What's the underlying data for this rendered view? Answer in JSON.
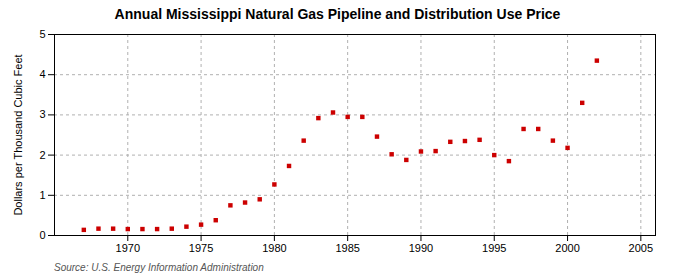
{
  "chart_data": {
    "type": "scatter",
    "title": "Annual Mississippi Natural Gas Pipeline and Distribution Use Price",
    "ylabel": "Dollars per Thousand Cubic Feet",
    "caption": "Source: U.S. Energy Information Administration",
    "x": [
      1967,
      1968,
      1969,
      1970,
      1971,
      1972,
      1973,
      1974,
      1975,
      1976,
      1977,
      1978,
      1979,
      1980,
      1981,
      1982,
      1983,
      1984,
      1985,
      1986,
      1987,
      1988,
      1989,
      1990,
      1991,
      1992,
      1993,
      1994,
      1995,
      1996,
      1997,
      1998,
      1999,
      2000,
      2001,
      2002
    ],
    "values": [
      0.14,
      0.17,
      0.17,
      0.16,
      0.16,
      0.16,
      0.17,
      0.22,
      0.27,
      0.38,
      0.75,
      0.82,
      0.9,
      1.27,
      1.73,
      2.36,
      2.92,
      3.06,
      2.95,
      2.95,
      2.46,
      2.02,
      1.88,
      2.09,
      2.1,
      2.33,
      2.35,
      2.38,
      2.0,
      1.85,
      2.65,
      2.65,
      2.36,
      2.18,
      3.3,
      4.35
    ],
    "color": "#cc0000",
    "marker": "square",
    "xlim": [
      1965,
      2006
    ],
    "ylim": [
      0,
      5
    ],
    "xticks": [
      1970,
      1975,
      1980,
      1985,
      1990,
      1995,
      2000,
      2005
    ],
    "yticks": [
      0,
      1,
      2,
      3,
      4,
      5
    ],
    "grid": true
  }
}
